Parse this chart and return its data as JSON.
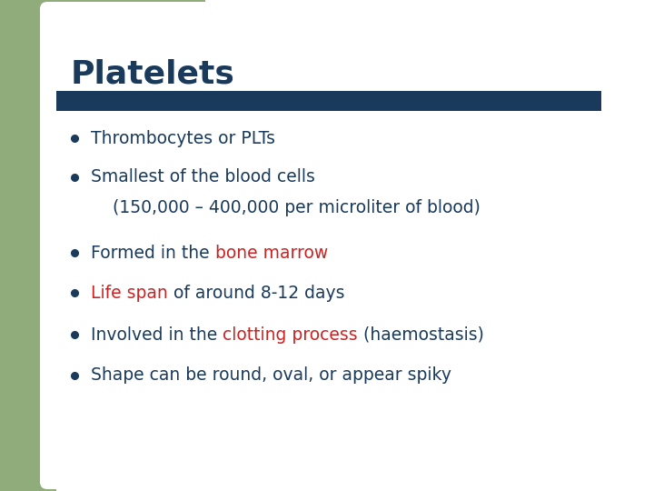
{
  "title": "Platelets",
  "title_color": "#1a3a5c",
  "title_fontsize": 26,
  "bg_color": "#ffffff",
  "left_bar_color": "#8fac7a",
  "divider_color": "#1a3a5c",
  "bullet_color": "#1a3a5c",
  "default_text_color": "#1a3a5c",
  "red_color": "#cc2222",
  "bullet_lines": [
    {
      "segments": [
        {
          "text": "Thrombocytes or PLTs",
          "color": "#1a3a5c"
        }
      ]
    },
    {
      "segments": [
        {
          "text": "Smallest of the blood cells",
          "color": "#1a3a5c"
        }
      ]
    },
    {
      "segments": [
        {
          "text": "    (150,000 – 400,000 per microliter of blood)",
          "color": "#1a3a5c"
        }
      ],
      "no_bullet": true
    },
    {
      "segments": [
        {
          "text": "Formed in the ",
          "color": "#1a3a5c"
        },
        {
          "text": "bone marrow",
          "color": "#cc2222"
        }
      ]
    },
    {
      "segments": [
        {
          "text": "Life span",
          "color": "#cc2222"
        },
        {
          "text": " of around 8-12 days",
          "color": "#1a3a5c"
        }
      ]
    },
    {
      "segments": [
        {
          "text": "Involved in the ",
          "color": "#1a3a5c"
        },
        {
          "text": "clotting process",
          "color": "#cc2222"
        },
        {
          "text": " (haemostasis)",
          "color": "#1a3a5c"
        }
      ]
    },
    {
      "segments": [
        {
          "text": "Shape can be round, oval, or appear spiky",
          "color": "#1a3a5c"
        }
      ]
    }
  ]
}
